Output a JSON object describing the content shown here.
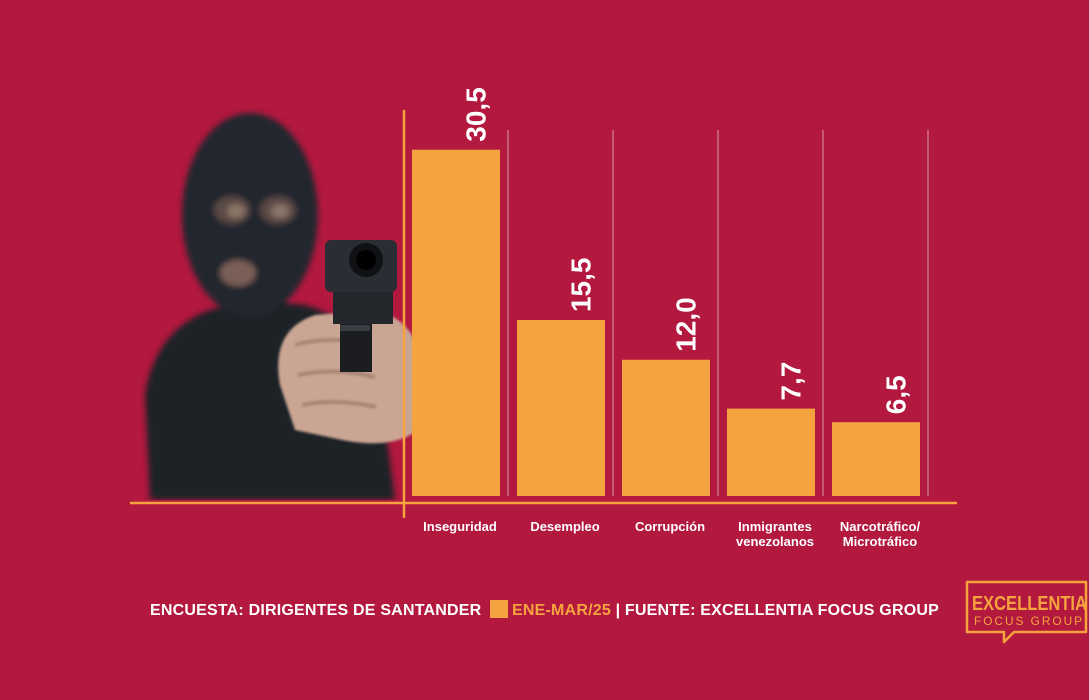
{
  "chart_data": {
    "type": "bar",
    "categories": [
      "Inseguridad",
      "Desempleo",
      "Corrupción",
      "Inmigrantes venezolanos",
      "Narcotráfico/ Microtráfico"
    ],
    "category_lines": [
      [
        "Inseguridad"
      ],
      [
        "Desempleo"
      ],
      [
        "Corrupción"
      ],
      [
        "Inmigrantes",
        "venezolanos"
      ],
      [
        "Narcotráfico/",
        "Microtráfico"
      ]
    ],
    "values": [
      30.5,
      15.5,
      12.0,
      7.7,
      6.5
    ],
    "value_labels": [
      "30,5",
      "15,5",
      "12,0",
      "7,7",
      "6,5"
    ],
    "ylim": [
      0,
      34
    ],
    "grid": true,
    "bar_color": "#f5a33e"
  },
  "footer": {
    "survey": "ENCUESTA: DIRIGENTES DE SANTANDER",
    "period": "ENE-MAR/25",
    "source": "| FUENTE: EXCELLENTIA FOCUS GROUP"
  },
  "logo": {
    "line1": "EXCELLENTIA",
    "line2": "FOCUS GROUP"
  },
  "colors": {
    "background": "#b3183f",
    "accent": "#f5a33e",
    "text": "#ffffff"
  }
}
